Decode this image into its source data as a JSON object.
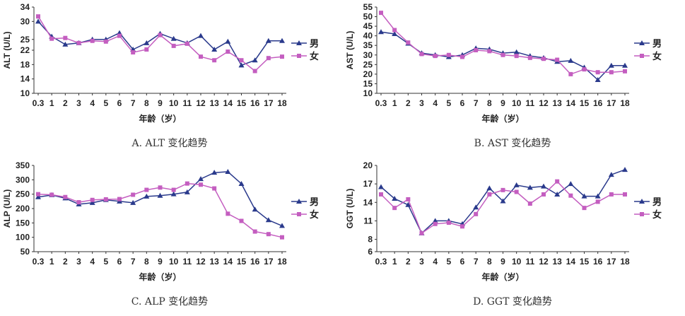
{
  "colors": {
    "male": "#2a3a8c",
    "female": "#c45ec0"
  },
  "legend": {
    "male": "男",
    "female": "女"
  },
  "charts": [
    {
      "type": "line",
      "caption": "A. ALT 变化趋势",
      "xlabel": "年龄（岁）",
      "ylabel": "ALT (U/L)",
      "categories": [
        "0.3",
        "1",
        "2",
        "3",
        "4",
        "5",
        "6",
        "7",
        "8",
        "9",
        "10",
        "11",
        "12",
        "13",
        "14",
        "15",
        "16",
        "17",
        "18"
      ],
      "ylim": [
        10,
        34
      ],
      "yticks": [
        "10",
        "14",
        "18",
        "22",
        "25",
        "30",
        "34"
      ],
      "series": [
        {
          "name": "男",
          "values": [
            30.0,
            25.8,
            23.6,
            24.0,
            25.0,
            25.0,
            26.8,
            22.2,
            24.0,
            26.6,
            25.2,
            24.0,
            26.0,
            22.2,
            24.4,
            17.8,
            19.2,
            24.6,
            24.6
          ]
        },
        {
          "name": "女",
          "values": [
            31.4,
            25.2,
            25.4,
            24.0,
            24.6,
            24.4,
            26.0,
            21.4,
            22.2,
            26.2,
            23.2,
            23.8,
            20.2,
            19.2,
            21.6,
            19.2,
            16.2,
            19.8,
            20.2
          ]
        }
      ]
    },
    {
      "type": "line",
      "caption": "B. AST 变化趋势",
      "xlabel": "年龄（岁）",
      "ylabel": "AST (U/L)",
      "categories": [
        "0.3",
        "1",
        "2",
        "3",
        "4",
        "5",
        "6",
        "7",
        "8",
        "9",
        "10",
        "11",
        "12",
        "13",
        "14",
        "15",
        "16",
        "17",
        "18"
      ],
      "ylim": [
        10,
        55
      ],
      "yticks": [
        "10",
        "15",
        "20",
        "25",
        "30",
        "35",
        "40",
        "45",
        "50",
        "55"
      ],
      "series": [
        {
          "name": "男",
          "values": [
            42.0,
            41.0,
            36.0,
            31.0,
            30.0,
            29.0,
            30.0,
            33.5,
            33.0,
            31.0,
            31.5,
            29.5,
            28.5,
            26.5,
            27.0,
            23.5,
            17.0,
            24.5,
            24.5
          ]
        },
        {
          "name": "女",
          "values": [
            52.0,
            43.0,
            36.5,
            30.5,
            29.5,
            30.0,
            29.0,
            32.5,
            32.0,
            30.0,
            29.5,
            28.5,
            28.0,
            27.5,
            20.0,
            22.5,
            21.0,
            21.0,
            21.5
          ]
        }
      ]
    },
    {
      "type": "line",
      "caption": "C. ALP 变化趋势",
      "xlabel": "年龄（岁）",
      "ylabel": "ALP (U/L)",
      "categories": [
        "0.3",
        "1",
        "2",
        "3",
        "4",
        "5",
        "6",
        "7",
        "8",
        "9",
        "10",
        "11",
        "12",
        "13",
        "14",
        "15",
        "16",
        "17",
        "18"
      ],
      "ylim": [
        50,
        350
      ],
      "yticks": [
        "50",
        "100",
        "150",
        "200",
        "250",
        "300",
        "350"
      ],
      "series": [
        {
          "name": "男",
          "values": [
            240,
            247,
            236,
            215,
            220,
            230,
            225,
            220,
            242,
            245,
            250,
            257,
            303,
            325,
            328,
            286,
            197,
            160,
            140
          ]
        },
        {
          "name": "女",
          "values": [
            250,
            248,
            240,
            222,
            230,
            232,
            233,
            248,
            265,
            273,
            265,
            287,
            283,
            270,
            182,
            157,
            120,
            111,
            100
          ]
        }
      ]
    },
    {
      "type": "line",
      "caption": "D. GGT 变化趋势",
      "xlabel": "年龄（岁）",
      "ylabel": "GGT (U/L)",
      "categories": [
        "0.3",
        "1",
        "2",
        "3",
        "4",
        "5",
        "6",
        "7",
        "8",
        "9",
        "10",
        "11",
        "12",
        "13",
        "14",
        "15",
        "16",
        "17",
        "18"
      ],
      "ylim": [
        6,
        20
      ],
      "yticks": [
        "6",
        "8",
        "11",
        "14",
        "17",
        "20"
      ],
      "series": [
        {
          "name": "男",
          "values": [
            16.5,
            14.6,
            13.6,
            9.0,
            11.0,
            11.0,
            10.5,
            13.2,
            16.3,
            14.2,
            16.8,
            16.4,
            16.6,
            15.3,
            17.0,
            15.0,
            15.0,
            18.5,
            19.3
          ]
        },
        {
          "name": "女",
          "values": [
            15.3,
            13.1,
            14.5,
            9.0,
            10.5,
            10.7,
            10.1,
            12.1,
            15.3,
            16.0,
            15.7,
            13.8,
            15.3,
            17.4,
            15.1,
            13.1,
            14.1,
            15.3,
            15.3
          ]
        }
      ]
    }
  ]
}
